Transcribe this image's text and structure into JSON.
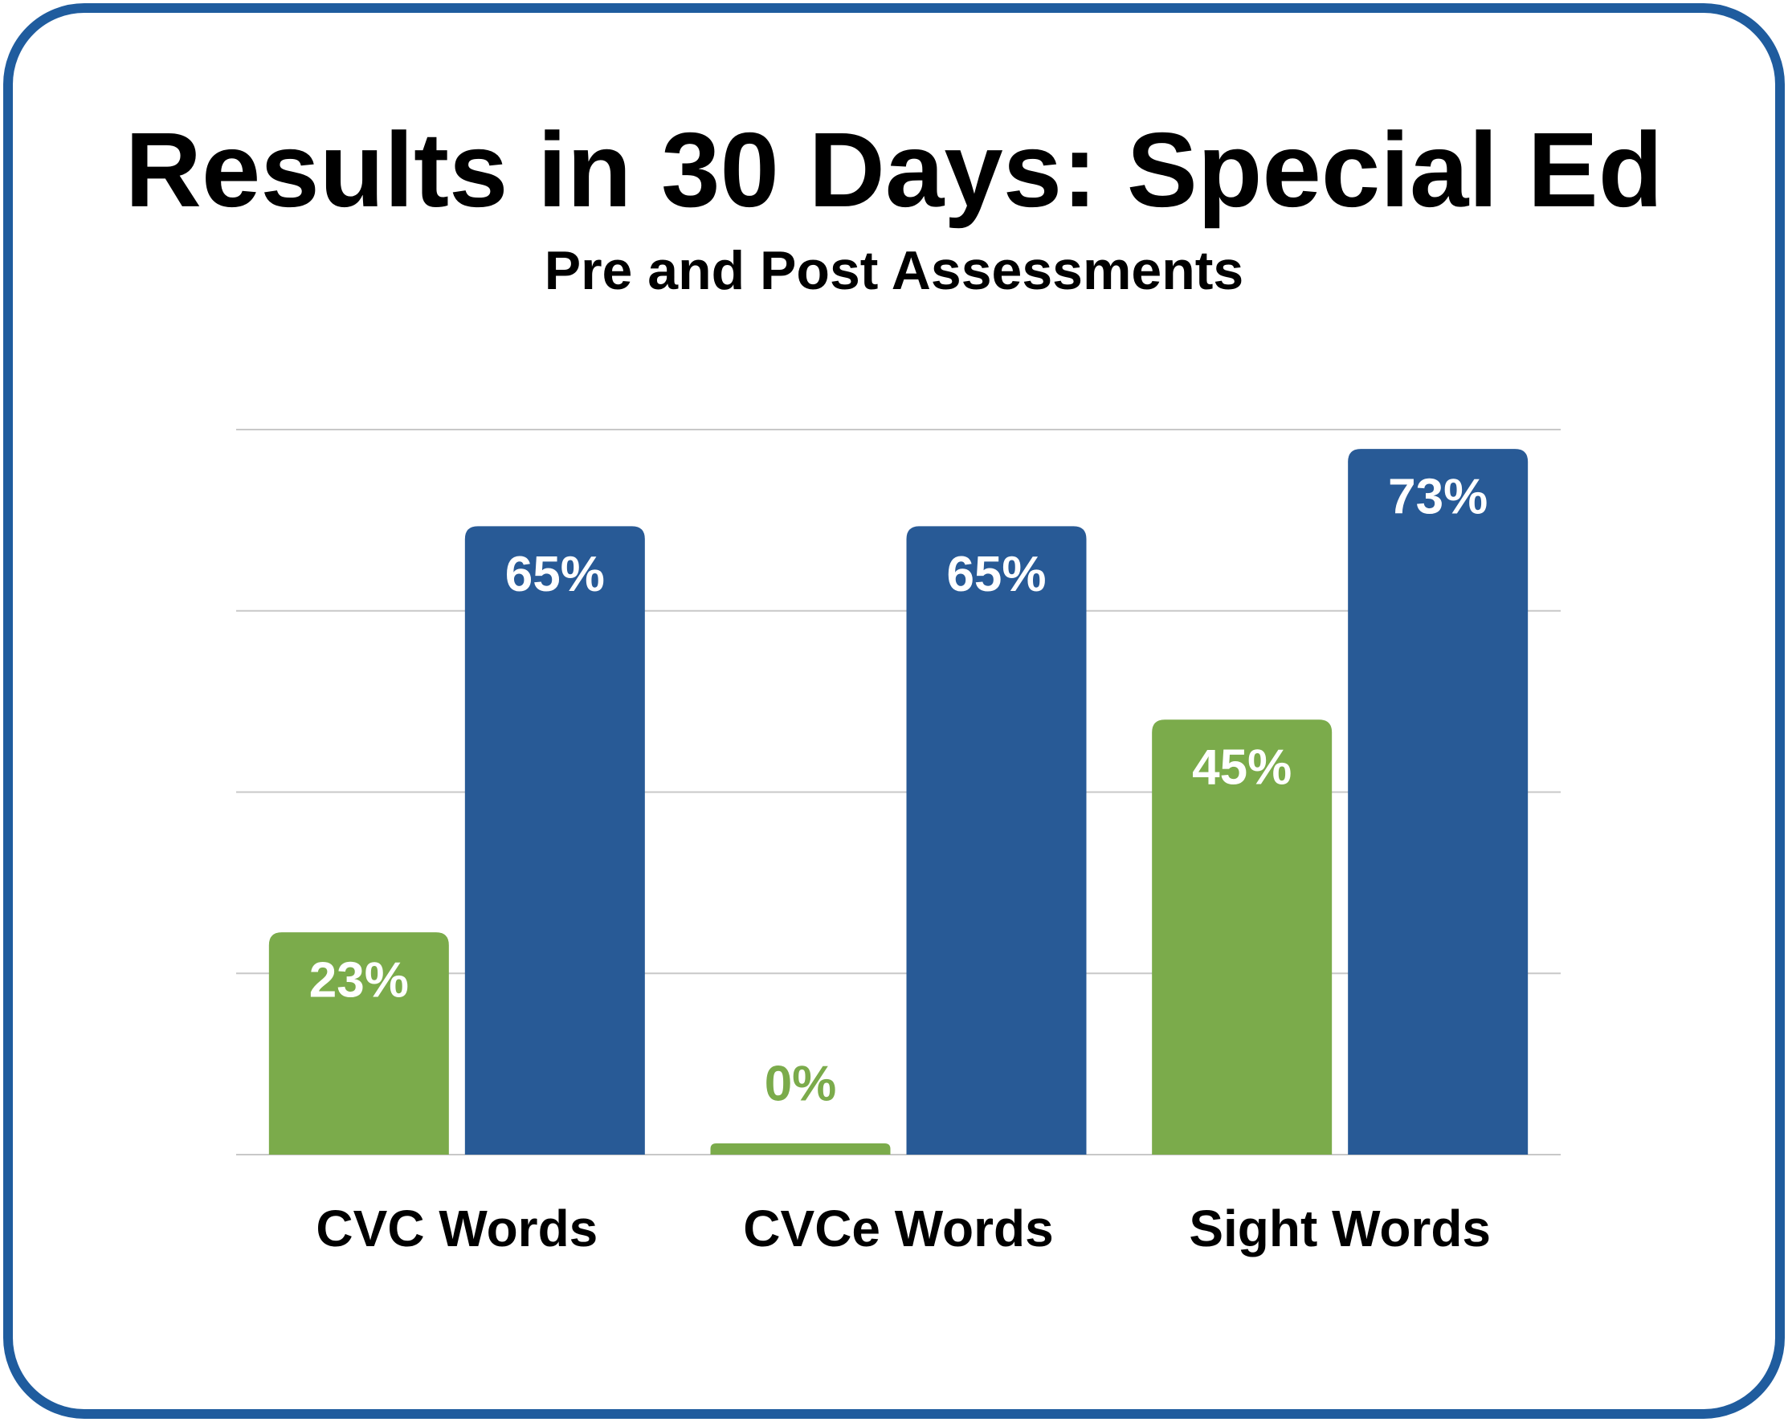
{
  "chart_data": {
    "type": "bar",
    "title": "Results in 30 Days: Special Ed",
    "subtitle": "Pre and Post Assessments",
    "categories": [
      "CVC Words",
      "CVCe Words",
      "Sight Words"
    ],
    "series": [
      {
        "color": "#7bab4b",
        "values": [
          23,
          0,
          45
        ],
        "value_labels": [
          "23%",
          "0%",
          "45%"
        ]
      },
      {
        "color": "#285a96",
        "values": [
          65,
          65,
          73
        ],
        "value_labels": [
          "65%",
          "65%",
          "73%"
        ]
      }
    ],
    "ylim": [
      0,
      75
    ],
    "yticks": [
      0,
      18.75,
      37.5,
      56.25,
      75
    ],
    "grid": true
  }
}
